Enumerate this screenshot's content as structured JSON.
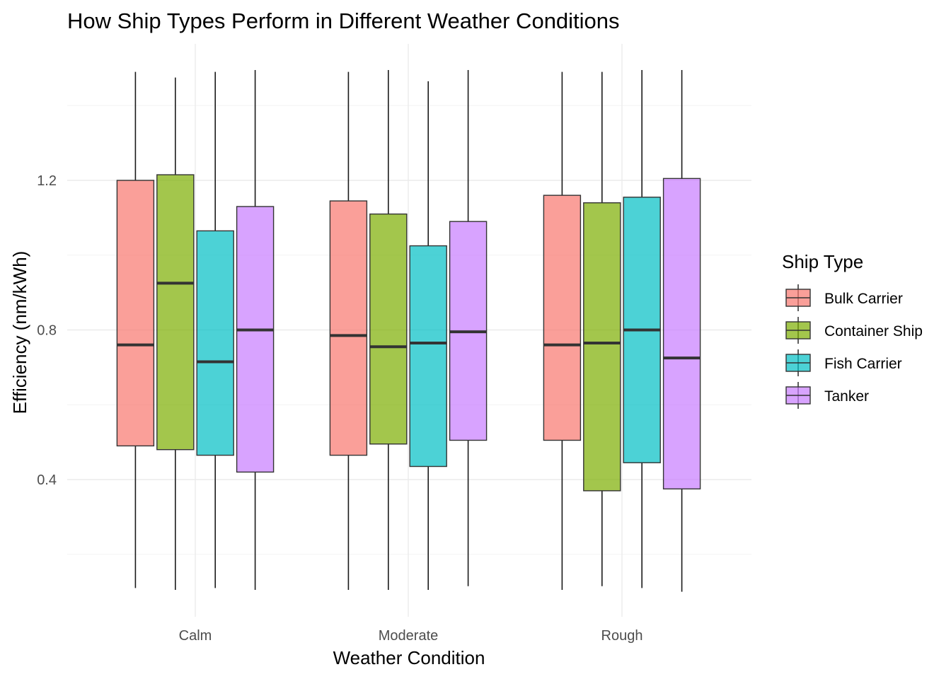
{
  "chart_data": {
    "type": "boxplot",
    "title": "How Ship Types Perform in Different Weather Conditions",
    "xlabel": "Weather Condition",
    "ylabel": "Efficiency (nm/kWh)",
    "ylim": [
      0.08,
      1.53
    ],
    "y_ticks": [
      0.4,
      0.8,
      1.2
    ],
    "y_tick_labels": [
      "0.4",
      "0.8",
      "1.2"
    ],
    "grid": true,
    "legend_position": "right",
    "legend_title": "Ship Type",
    "categories": [
      "Calm",
      "Moderate",
      "Rough"
    ],
    "series": [
      {
        "name": "Bulk Carrier",
        "color": "#F8766D",
        "boxes": [
          {
            "min": 0.11,
            "q1": 0.49,
            "median": 0.76,
            "q3": 1.2,
            "max": 1.49
          },
          {
            "min": 0.105,
            "q1": 0.465,
            "median": 0.785,
            "q3": 1.145,
            "max": 1.49
          },
          {
            "min": 0.105,
            "q1": 0.505,
            "median": 0.76,
            "q3": 1.16,
            "max": 1.49
          }
        ]
      },
      {
        "name": "Container Ship",
        "color": "#7CAE00",
        "boxes": [
          {
            "min": 0.105,
            "q1": 0.48,
            "median": 0.925,
            "q3": 1.215,
            "max": 1.475
          },
          {
            "min": 0.105,
            "q1": 0.495,
            "median": 0.755,
            "q3": 1.11,
            "max": 1.495
          },
          {
            "min": 0.115,
            "q1": 0.37,
            "median": 0.765,
            "q3": 1.14,
            "max": 1.49
          }
        ]
      },
      {
        "name": "Fish Carrier",
        "color": "#00BFC4",
        "boxes": [
          {
            "min": 0.11,
            "q1": 0.465,
            "median": 0.715,
            "q3": 1.065,
            "max": 1.49
          },
          {
            "min": 0.105,
            "q1": 0.435,
            "median": 0.765,
            "q3": 1.025,
            "max": 1.465
          },
          {
            "min": 0.11,
            "q1": 0.445,
            "median": 0.8,
            "q3": 1.155,
            "max": 1.495
          }
        ]
      },
      {
        "name": "Tanker",
        "color": "#C77CFF",
        "boxes": [
          {
            "min": 0.105,
            "q1": 0.42,
            "median": 0.8,
            "q3": 1.13,
            "max": 1.495
          },
          {
            "min": 0.115,
            "q1": 0.505,
            "median": 0.795,
            "q3": 1.09,
            "max": 1.495
          },
          {
            "min": 0.1,
            "q1": 0.375,
            "median": 0.725,
            "q3": 1.205,
            "max": 1.495
          }
        ]
      }
    ]
  }
}
